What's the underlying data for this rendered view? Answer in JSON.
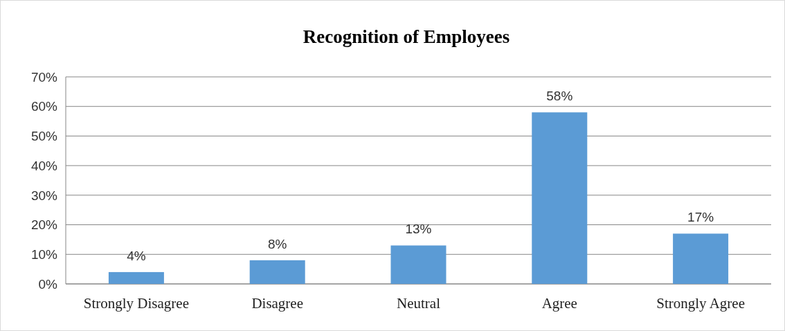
{
  "chart_data": {
    "type": "bar",
    "title": "Recognition of Employees",
    "categories": [
      "Strongly Disagree",
      "Disagree",
      "Neutral",
      "Agree",
      "Strongly Agree"
    ],
    "values": [
      4,
      8,
      13,
      58,
      17
    ],
    "value_labels": [
      "4%",
      "8%",
      "13%",
      "58%",
      "17%"
    ],
    "color": "#5b9bd5",
    "ylim": [
      0,
      70
    ],
    "yticks": [
      {
        "value": 0,
        "label": "0%"
      },
      {
        "value": 10,
        "label": "10%"
      },
      {
        "value": 20,
        "label": "20%"
      },
      {
        "value": 30,
        "label": "30%"
      },
      {
        "value": 40,
        "label": "40%"
      },
      {
        "value": 50,
        "label": "50%"
      },
      {
        "value": 60,
        "label": "60%"
      },
      {
        "value": 70,
        "label": "70%"
      }
    ],
    "grid": "y"
  }
}
